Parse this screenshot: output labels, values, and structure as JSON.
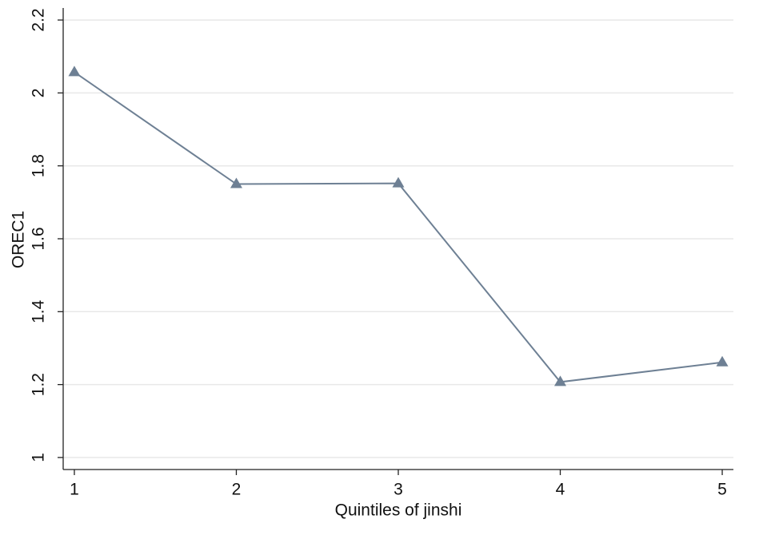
{
  "chart_data": {
    "type": "line",
    "x_label": "Quintiles of jinshi",
    "y_label": "OREC1",
    "series": [
      {
        "name": "OREC1",
        "color": "#6e8094",
        "x": [
          1,
          2,
          3,
          4,
          5
        ],
        "values": [
          2.057,
          1.75,
          1.752,
          1.207,
          1.261
        ]
      }
    ],
    "xlim": [
      0.931,
      5.069
    ],
    "xticks": [
      1,
      2,
      3,
      4,
      5
    ],
    "ylim": [
      0.967,
      2.233
    ],
    "yticks": [
      1,
      1.2,
      1.4,
      1.6,
      1.8,
      2,
      2.2
    ],
    "grid": true
  }
}
